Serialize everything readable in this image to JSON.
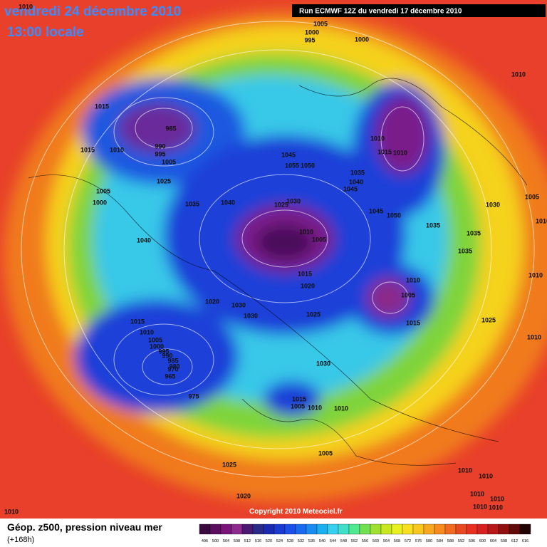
{
  "header": {
    "title": "vendredi 24 décembre 2010",
    "subtitle": "13:00 locale",
    "run": "Run ECMWF 12Z du vendredi 17 décembre 2010"
  },
  "copyright": "Copyright 2010 Meteociel.fr",
  "footer": {
    "title": "Géop. z500, pression niveau mer",
    "lead": "(+168h)"
  },
  "legend": {
    "values": [
      496,
      500,
      504,
      508,
      512,
      516,
      520,
      524,
      528,
      532,
      536,
      540,
      544,
      548,
      552,
      556,
      560,
      564,
      568,
      572,
      576,
      580,
      584,
      588,
      592,
      596,
      600,
      604,
      608,
      612,
      616
    ],
    "colors": [
      "#3a0a3e",
      "#5a0e5e",
      "#7a147a",
      "#8e2a8e",
      "#4a1870",
      "#2a2a8a",
      "#1a2ab0",
      "#1a3ad0",
      "#1a50e8",
      "#1a6af0",
      "#1a8cf0",
      "#1ab0f0",
      "#38d0f0",
      "#40e0c8",
      "#50e890",
      "#70e050",
      "#a0e030",
      "#c8e820",
      "#e8f020",
      "#f8e020",
      "#f8c820",
      "#f8a820",
      "#f88a20",
      "#f06a20",
      "#e84a20",
      "#e83020",
      "#d82020",
      "#b81818",
      "#901010",
      "#600a0a",
      "#200404"
    ]
  },
  "isobar_labels": [
    "1010",
    "1005",
    "1000",
    "995",
    "1000",
    "1010",
    "1015",
    "985",
    "990",
    "995",
    "1005",
    "1010",
    "1015",
    "1025",
    "1005",
    "1000",
    "1035",
    "1040",
    "1045",
    "1055",
    "1050",
    "1035",
    "1040",
    "1045",
    "1010",
    "1015",
    "1010",
    "1030",
    "1025",
    "1010",
    "1005",
    "1045",
    "1050",
    "1035",
    "1030",
    "1005",
    "1010",
    "1035",
    "1035",
    "1010",
    "1040",
    "1015",
    "1020",
    "1010",
    "1005",
    "1015",
    "1020",
    "1030",
    "1030",
    "1025",
    "1025",
    "1010",
    "1015",
    "1010",
    "1005",
    "1000",
    "995",
    "990",
    "985",
    "980",
    "970",
    "965",
    "975",
    "1030",
    "1015",
    "1005",
    "1010",
    "1010",
    "1005",
    "1025",
    "1010",
    "1020",
    "1010",
    "1010",
    "1010",
    "1010",
    "1010",
    "1010"
  ]
}
